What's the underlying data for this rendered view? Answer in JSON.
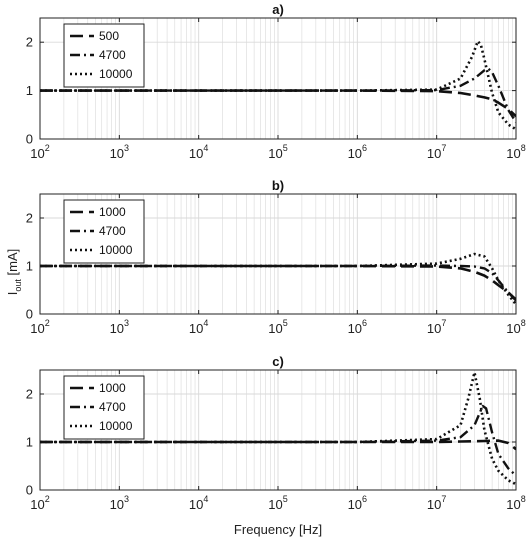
{
  "chart_data": [
    {
      "type": "line",
      "title": "a)",
      "xscale": "log",
      "xlim": [
        100,
        100000000
      ],
      "ylim": [
        0,
        2.5
      ],
      "yticks": [
        0,
        1,
        2
      ],
      "grid": true,
      "legend_position": "top-left",
      "series": [
        {
          "name": "500",
          "style": "dashed",
          "x": [
            100,
            1000000,
            10000000,
            20000000,
            30000000,
            40000000,
            50000000,
            60000000,
            80000000,
            100000000
          ],
          "y": [
            1.0,
            1.0,
            0.99,
            0.95,
            0.9,
            0.86,
            0.82,
            0.75,
            0.62,
            0.47
          ]
        },
        {
          "name": "4700",
          "style": "dashdot",
          "x": [
            100,
            1000000,
            10000000,
            20000000,
            30000000,
            40000000,
            45000000,
            50000000,
            60000000,
            80000000,
            100000000
          ],
          "y": [
            1.0,
            1.0,
            1.01,
            1.1,
            1.25,
            1.42,
            1.45,
            1.38,
            1.1,
            0.6,
            0.35
          ]
        },
        {
          "name": "10000",
          "style": "dotted",
          "x": [
            100,
            1000000,
            10000000,
            20000000,
            28000000,
            33000000,
            36000000,
            40000000,
            50000000,
            60000000,
            80000000,
            100000000
          ],
          "y": [
            1.0,
            1.0,
            1.02,
            1.25,
            1.7,
            2.02,
            1.95,
            1.65,
            0.95,
            0.55,
            0.3,
            0.2
          ]
        }
      ]
    },
    {
      "type": "line",
      "title": "b)",
      "xscale": "log",
      "xlim": [
        100,
        100000000
      ],
      "ylim": [
        0,
        2.5
      ],
      "yticks": [
        0,
        1,
        2
      ],
      "grid": true,
      "legend_position": "top-left",
      "series": [
        {
          "name": "1000",
          "style": "dashed",
          "x": [
            100,
            1000000,
            10000000,
            20000000,
            30000000,
            40000000,
            50000000,
            60000000,
            80000000,
            100000000
          ],
          "y": [
            1.0,
            1.0,
            0.99,
            0.95,
            0.88,
            0.8,
            0.7,
            0.6,
            0.45,
            0.3
          ]
        },
        {
          "name": "4700",
          "style": "dashdot",
          "x": [
            100,
            1000000,
            10000000,
            20000000,
            30000000,
            40000000,
            50000000,
            60000000,
            80000000,
            100000000
          ],
          "y": [
            1.0,
            1.0,
            1.01,
            1.0,
            0.99,
            0.95,
            0.85,
            0.7,
            0.45,
            0.28
          ]
        },
        {
          "name": "10000",
          "style": "dotted",
          "x": [
            100,
            1000000,
            10000000,
            20000000,
            30000000,
            40000000,
            50000000,
            60000000,
            80000000,
            100000000
          ],
          "y": [
            1.0,
            1.0,
            1.05,
            1.15,
            1.25,
            1.2,
            0.95,
            0.7,
            0.4,
            0.2
          ]
        }
      ]
    },
    {
      "type": "line",
      "title": "c)",
      "xscale": "log",
      "xlim": [
        100,
        100000000
      ],
      "ylim": [
        0,
        2.5
      ],
      "yticks": [
        0,
        1,
        2
      ],
      "grid": true,
      "legend_position": "top-left",
      "series": [
        {
          "name": "1000",
          "style": "dashed",
          "x": [
            100,
            1000000,
            10000000,
            20000000,
            40000000,
            60000000,
            80000000,
            100000000
          ],
          "y": [
            1.0,
            1.0,
            1.0,
            1.01,
            1.02,
            1.03,
            0.98,
            0.85
          ]
        },
        {
          "name": "4700",
          "style": "dashdot",
          "x": [
            100,
            1000000,
            10000000,
            20000000,
            30000000,
            38000000,
            42000000,
            50000000,
            60000000,
            80000000,
            100000000
          ],
          "y": [
            1.0,
            1.0,
            1.03,
            1.1,
            1.35,
            1.75,
            1.7,
            1.2,
            0.75,
            0.45,
            0.3
          ]
        },
        {
          "name": "10000",
          "style": "dotted",
          "x": [
            100,
            1000000,
            10000000,
            20000000,
            25000000,
            30000000,
            35000000,
            40000000,
            50000000,
            60000000,
            80000000,
            100000000
          ],
          "y": [
            1.0,
            1.0,
            1.06,
            1.35,
            1.9,
            2.45,
            1.9,
            1.25,
            0.65,
            0.4,
            0.2,
            0.12
          ]
        }
      ]
    }
  ],
  "figure": {
    "ylabel_main": "I",
    "ylabel_sub": "out",
    "ylabel_unit": " [mA]",
    "xlabel": "Frequency [Hz]",
    "x_tick_base": "10",
    "x_tick_exponents": [
      "2",
      "3",
      "4",
      "5",
      "6",
      "7",
      "8"
    ],
    "y_tick_labels": [
      "0",
      "1",
      "2"
    ]
  },
  "colors": {
    "line": "#111111",
    "axis": "#222222",
    "grid": "#d9d9d9",
    "background": "#ffffff"
  }
}
